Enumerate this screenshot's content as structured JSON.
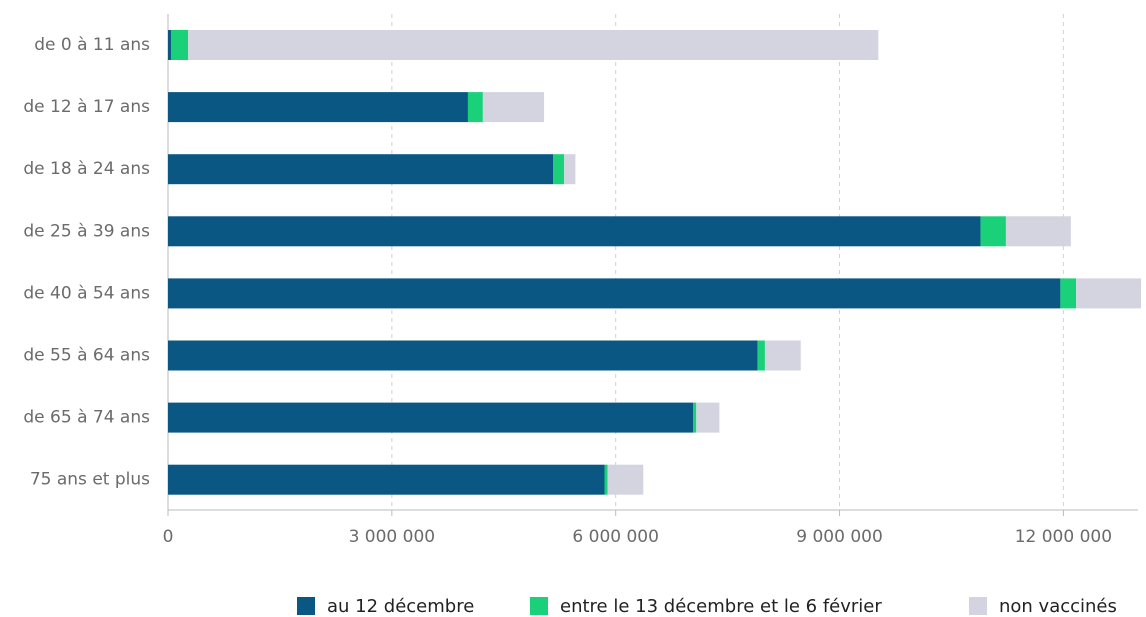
{
  "chart_data": {
    "type": "stacked-bar-horizontal",
    "categories": [
      "de 0 à 11 ans",
      "de 12 à 17 ans",
      "de 18 à 24 ans",
      "de 25 à 39 ans",
      "de 40 à 54 ans",
      "de 55 à 64 ans",
      "de 65 à 74 ans",
      "75 ans et plus"
    ],
    "series": [
      {
        "name": "au 12 décembre",
        "color": "#0b5783",
        "values": [
          40000,
          4020000,
          5160000,
          10890000,
          11960000,
          7900000,
          7040000,
          5850000
        ]
      },
      {
        "name": "entre le 13 décembre et le 6 février",
        "color": "#1ad17a",
        "values": [
          230000,
          200000,
          150000,
          340000,
          210000,
          100000,
          40000,
          40000
        ]
      },
      {
        "name": "non vaccinés",
        "color": "#d3d4df",
        "values": [
          9250000,
          820000,
          150000,
          870000,
          870000,
          480000,
          310000,
          480000
        ]
      }
    ],
    "xlim": [
      0,
      13000000
    ],
    "xticks": [
      0,
      {
        "value": 3000000,
        "label": "3 000 000"
      },
      {
        "value": 6000000,
        "label": "6 000 000"
      },
      {
        "value": 9000000,
        "label": "9 000 000"
      },
      {
        "value": 12000000,
        "label": "12 000 000"
      }
    ],
    "grid": true,
    "legend": "bottom-right"
  }
}
